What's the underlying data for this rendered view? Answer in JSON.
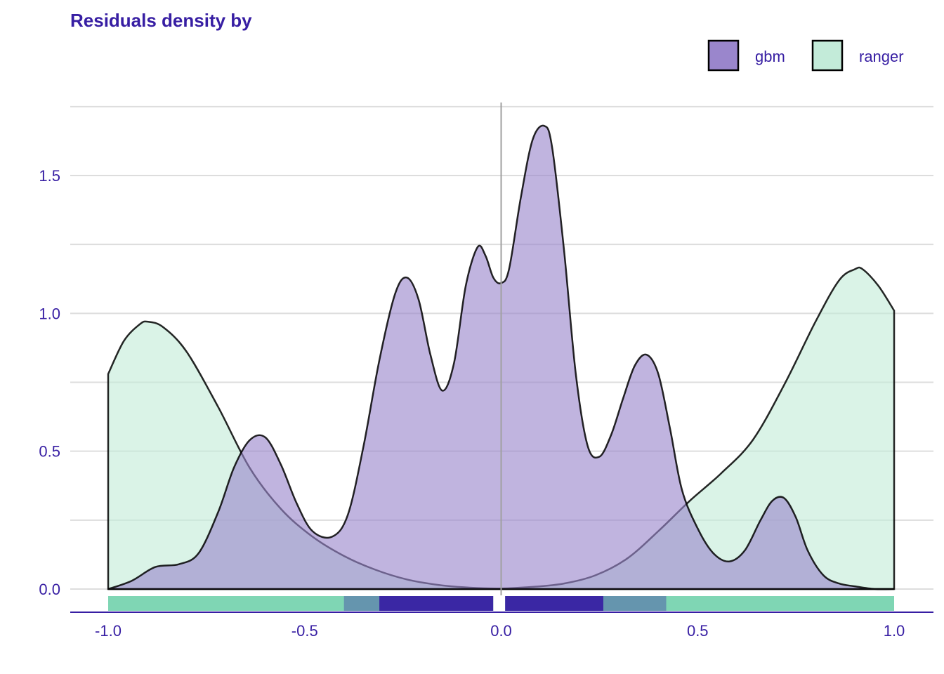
{
  "chart_data": {
    "type": "area",
    "title": "Residuals density by",
    "xlabel": "",
    "ylabel": "",
    "xlim": [
      -1.1,
      1.1
    ],
    "ylim": [
      -0.08,
      1.76
    ],
    "x_ticks": [
      -1.0,
      -0.5,
      0.0,
      0.5,
      1.0
    ],
    "x_tick_labels": [
      "-1.0",
      "-0.5",
      "0.0",
      "0.5",
      "1.0"
    ],
    "y_ticks": [
      0.0,
      0.5,
      1.0,
      1.5
    ],
    "y_tick_labels": [
      "0.0",
      "0.5",
      "1.0",
      "1.5"
    ],
    "grid": true,
    "reference_line_x": 0.0,
    "legend": {
      "position": "top-right",
      "entries": [
        {
          "label": "gbm",
          "color": "#9A86CC"
        },
        {
          "label": "ranger",
          "color": "#C3EBD9"
        }
      ]
    },
    "colors": {
      "text": "#371EA3",
      "gbm_fill": "#9A86CC",
      "ranger_fill": "#C3EBD9",
      "rug_gbm": "#371EA3",
      "rug_ranger": "#7FD6B4",
      "outline": "#000000",
      "grid": "#DDDDDD",
      "reference": "#A0A0A0"
    },
    "series": [
      {
        "name": "ranger",
        "x": [
          -1.0,
          -0.96,
          -0.92,
          -0.9,
          -0.86,
          -0.8,
          -0.72,
          -0.64,
          -0.56,
          -0.48,
          -0.4,
          -0.32,
          -0.24,
          -0.16,
          -0.08,
          0.0,
          0.08,
          0.16,
          0.24,
          0.32,
          0.4,
          0.48,
          0.56,
          0.64,
          0.72,
          0.8,
          0.86,
          0.9,
          0.92,
          0.96,
          1.0
        ],
        "values": [
          0.78,
          0.9,
          0.96,
          0.97,
          0.95,
          0.86,
          0.66,
          0.44,
          0.29,
          0.19,
          0.12,
          0.07,
          0.035,
          0.015,
          0.005,
          0.002,
          0.008,
          0.02,
          0.05,
          0.11,
          0.21,
          0.32,
          0.42,
          0.54,
          0.74,
          0.97,
          1.12,
          1.16,
          1.16,
          1.1,
          1.01
        ]
      },
      {
        "name": "gbm",
        "x": [
          -1.0,
          -0.94,
          -0.88,
          -0.82,
          -0.77,
          -0.72,
          -0.68,
          -0.64,
          -0.6,
          -0.56,
          -0.52,
          -0.48,
          -0.43,
          -0.39,
          -0.35,
          -0.31,
          -0.27,
          -0.24,
          -0.21,
          -0.18,
          -0.15,
          -0.12,
          -0.09,
          -0.06,
          -0.04,
          -0.02,
          0.0,
          0.02,
          0.05,
          0.08,
          0.11,
          0.13,
          0.16,
          0.19,
          0.22,
          0.25,
          0.28,
          0.31,
          0.34,
          0.37,
          0.4,
          0.43,
          0.46,
          0.5,
          0.54,
          0.58,
          0.62,
          0.66,
          0.69,
          0.72,
          0.75,
          0.78,
          0.82,
          0.86,
          0.9,
          0.95,
          1.0
        ],
        "values": [
          0.0,
          0.03,
          0.08,
          0.09,
          0.13,
          0.28,
          0.44,
          0.54,
          0.55,
          0.45,
          0.31,
          0.21,
          0.19,
          0.27,
          0.52,
          0.83,
          1.07,
          1.13,
          1.05,
          0.85,
          0.72,
          0.82,
          1.1,
          1.24,
          1.21,
          1.13,
          1.11,
          1.16,
          1.42,
          1.63,
          1.68,
          1.6,
          1.23,
          0.78,
          0.52,
          0.48,
          0.56,
          0.69,
          0.81,
          0.85,
          0.78,
          0.58,
          0.36,
          0.22,
          0.13,
          0.1,
          0.14,
          0.25,
          0.32,
          0.33,
          0.26,
          0.14,
          0.05,
          0.02,
          0.01,
          0.0,
          0.0
        ]
      }
    ],
    "rug": {
      "ranger_range": [
        -1.0,
        1.0
      ],
      "gbm_bands": [
        [
          -0.4,
          -0.31
        ],
        [
          -0.31,
          -0.02
        ],
        [
          0.01,
          0.26
        ],
        [
          0.26,
          0.42
        ]
      ]
    }
  }
}
